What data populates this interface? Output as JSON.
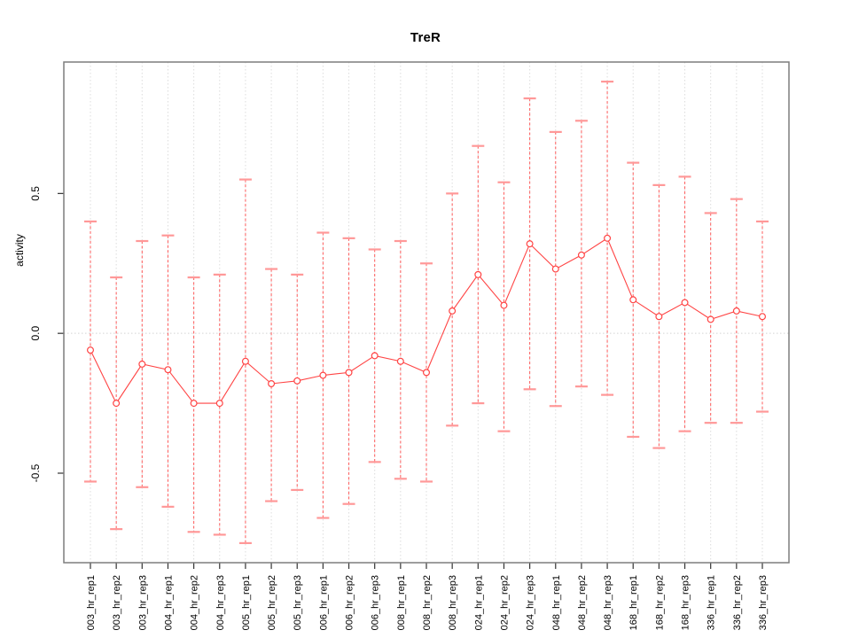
{
  "chart_data": {
    "type": "line",
    "title": "TreR",
    "xlabel": "",
    "ylabel": "activity",
    "legend": "none",
    "marker": "open-circle",
    "error_bars": true,
    "grid": "vertical-dotted-per-category",
    "zero_line_dotted": true,
    "ylim": [
      -0.82,
      0.97
    ],
    "yticks": [
      {
        "value": -0.5,
        "label": "-0.5"
      },
      {
        "value": 0.0,
        "label": "0.0"
      },
      {
        "value": 0.5,
        "label": "0.5"
      }
    ],
    "categories": [
      "003_hr_rep1",
      "003_hr_rep2",
      "003_hr_rep3",
      "004_hr_rep1",
      "004_hr_rep2",
      "004_hr_rep3",
      "005_hr_rep1",
      "005_hr_rep2",
      "005_hr_rep3",
      "006_hr_rep1",
      "006_hr_rep2",
      "006_hr_rep3",
      "008_hr_rep1",
      "008_hr_rep2",
      "008_hr_rep3",
      "024_hr_rep1",
      "024_hr_rep2",
      "024_hr_rep3",
      "048_hr_rep1",
      "048_hr_rep2",
      "048_hr_rep3",
      "168_hr_rep1",
      "168_hr_rep2",
      "168_hr_rep3",
      "336_hr_rep1",
      "336_hr_rep2",
      "336_hr_rep3"
    ],
    "series": [
      {
        "name": "activity",
        "values": [
          -0.06,
          -0.25,
          -0.11,
          -0.13,
          -0.25,
          -0.25,
          -0.1,
          -0.18,
          -0.17,
          -0.15,
          -0.14,
          -0.08,
          -0.1,
          -0.14,
          0.08,
          0.21,
          0.1,
          0.32,
          0.23,
          0.28,
          0.34,
          0.12,
          0.06,
          0.11,
          0.05,
          0.08,
          0.06
        ],
        "upper": [
          0.4,
          0.2,
          0.33,
          0.35,
          0.2,
          0.21,
          0.55,
          0.23,
          0.21,
          0.36,
          0.34,
          0.3,
          0.33,
          0.25,
          0.5,
          0.67,
          0.54,
          0.84,
          0.72,
          0.76,
          0.9,
          0.61,
          0.53,
          0.56,
          0.43,
          0.48,
          0.4
        ],
        "lower": [
          -0.53,
          -0.7,
          -0.55,
          -0.62,
          -0.71,
          -0.72,
          -0.75,
          -0.6,
          -0.56,
          -0.66,
          -0.61,
          -0.46,
          -0.52,
          -0.53,
          -0.33,
          -0.25,
          -0.35,
          -0.2,
          -0.26,
          -0.19,
          -0.22,
          -0.37,
          -0.41,
          -0.35,
          -0.32,
          -0.32,
          -0.28
        ]
      }
    ],
    "colors": {
      "series": "#ff4444",
      "stem": "#ff5b5b",
      "cap": "#ff9898",
      "grid": "#dcdcdc",
      "zero_line": "#d4d4d4",
      "box": "#7d7d7d",
      "tick": "#333333",
      "text": "#000000"
    }
  }
}
